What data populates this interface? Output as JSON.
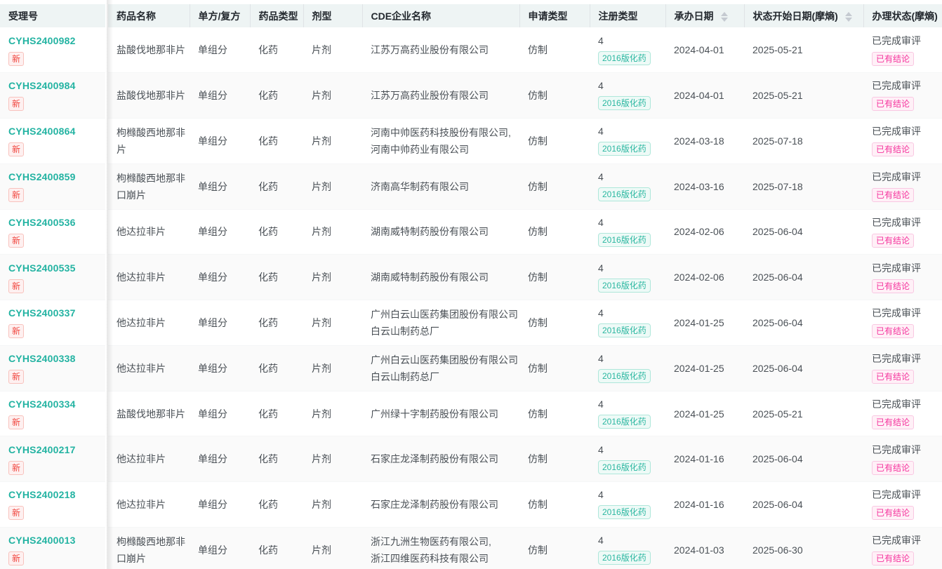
{
  "colors": {
    "accent_teal": "#23b3a2",
    "badge_red": "#f0443d",
    "badge_pink": "#f5339d",
    "header_bg": "#eef4f4",
    "zebra_bg": "#fafafa"
  },
  "table": {
    "new_badge": "新",
    "columns": [
      {
        "key": "acceptance_no",
        "label": "受理号",
        "sortable": false
      },
      {
        "key": "drug_name",
        "label": "药品名称",
        "sortable": false
      },
      {
        "key": "single_compound",
        "label": "单方/复方",
        "sortable": false
      },
      {
        "key": "drug_type",
        "label": "药品类型",
        "sortable": false
      },
      {
        "key": "dosage_form",
        "label": "剂型",
        "sortable": false
      },
      {
        "key": "cde_company",
        "label": "CDE企业名称",
        "sortable": false
      },
      {
        "key": "application_type",
        "label": "申请类型",
        "sortable": false
      },
      {
        "key": "registration_type",
        "label": "注册类型",
        "sortable": false
      },
      {
        "key": "acceptance_date",
        "label": "承办日期",
        "sortable": true
      },
      {
        "key": "status_start_date",
        "label": "状态开始日期(摩熵)",
        "sortable": true
      },
      {
        "key": "status",
        "label": "办理状态(摩熵)",
        "sortable": false
      }
    ],
    "rows": [
      {
        "acceptance_no": "CYHS2400982",
        "drug_name": "盐酸伐地那非片",
        "single_compound": "单组分",
        "drug_type": "化药",
        "dosage_form": "片剂",
        "cde_company": [
          "江苏万高药业股份有限公司"
        ],
        "application_type": "仿制",
        "registration_number": "4",
        "registration_tag": "2016版化药",
        "acceptance_date": "2024-04-01",
        "status_start_date": "2025-05-21",
        "status_text": "已完成审评",
        "status_tag": "已有结论"
      },
      {
        "acceptance_no": "CYHS2400984",
        "drug_name": "盐酸伐地那非片",
        "single_compound": "单组分",
        "drug_type": "化药",
        "dosage_form": "片剂",
        "cde_company": [
          "江苏万高药业股份有限公司"
        ],
        "application_type": "仿制",
        "registration_number": "4",
        "registration_tag": "2016版化药",
        "acceptance_date": "2024-04-01",
        "status_start_date": "2025-05-21",
        "status_text": "已完成审评",
        "status_tag": "已有结论"
      },
      {
        "acceptance_no": "CYHS2400864",
        "drug_name": "枸橼酸西地那非片",
        "single_compound": "单组分",
        "drug_type": "化药",
        "dosage_form": "片剂",
        "cde_company": [
          "河南中帅医药科技股份有限公司,",
          "河南中帅药业有限公司"
        ],
        "application_type": "仿制",
        "registration_number": "4",
        "registration_tag": "2016版化药",
        "acceptance_date": "2024-03-18",
        "status_start_date": "2025-07-18",
        "status_text": "已完成审评",
        "status_tag": "已有结论"
      },
      {
        "acceptance_no": "CYHS2400859",
        "drug_name": "枸橼酸西地那非口崩片",
        "single_compound": "单组分",
        "drug_type": "化药",
        "dosage_form": "片剂",
        "cde_company": [
          "济南高华制药有限公司"
        ],
        "application_type": "仿制",
        "registration_number": "4",
        "registration_tag": "2016版化药",
        "acceptance_date": "2024-03-16",
        "status_start_date": "2025-07-18",
        "status_text": "已完成审评",
        "status_tag": "已有结论"
      },
      {
        "acceptance_no": "CYHS2400536",
        "drug_name": "他达拉非片",
        "single_compound": "单组分",
        "drug_type": "化药",
        "dosage_form": "片剂",
        "cde_company": [
          "湖南威特制药股份有限公司"
        ],
        "application_type": "仿制",
        "registration_number": "4",
        "registration_tag": "2016版化药",
        "acceptance_date": "2024-02-06",
        "status_start_date": "2025-06-04",
        "status_text": "已完成审评",
        "status_tag": "已有结论"
      },
      {
        "acceptance_no": "CYHS2400535",
        "drug_name": "他达拉非片",
        "single_compound": "单组分",
        "drug_type": "化药",
        "dosage_form": "片剂",
        "cde_company": [
          "湖南威特制药股份有限公司"
        ],
        "application_type": "仿制",
        "registration_number": "4",
        "registration_tag": "2016版化药",
        "acceptance_date": "2024-02-06",
        "status_start_date": "2025-06-04",
        "status_text": "已完成审评",
        "status_tag": "已有结论"
      },
      {
        "acceptance_no": "CYHS2400337",
        "drug_name": "他达拉非片",
        "single_compound": "单组分",
        "drug_type": "化药",
        "dosage_form": "片剂",
        "cde_company": [
          "广州白云山医药集团股份有限公司",
          "白云山制药总厂"
        ],
        "application_type": "仿制",
        "registration_number": "4",
        "registration_tag": "2016版化药",
        "acceptance_date": "2024-01-25",
        "status_start_date": "2025-06-04",
        "status_text": "已完成审评",
        "status_tag": "已有结论"
      },
      {
        "acceptance_no": "CYHS2400338",
        "drug_name": "他达拉非片",
        "single_compound": "单组分",
        "drug_type": "化药",
        "dosage_form": "片剂",
        "cde_company": [
          "广州白云山医药集团股份有限公司",
          "白云山制药总厂"
        ],
        "application_type": "仿制",
        "registration_number": "4",
        "registration_tag": "2016版化药",
        "acceptance_date": "2024-01-25",
        "status_start_date": "2025-06-04",
        "status_text": "已完成审评",
        "status_tag": "已有结论"
      },
      {
        "acceptance_no": "CYHS2400334",
        "drug_name": "盐酸伐地那非片",
        "single_compound": "单组分",
        "drug_type": "化药",
        "dosage_form": "片剂",
        "cde_company": [
          "广州绿十字制药股份有限公司"
        ],
        "application_type": "仿制",
        "registration_number": "4",
        "registration_tag": "2016版化药",
        "acceptance_date": "2024-01-25",
        "status_start_date": "2025-05-21",
        "status_text": "已完成审评",
        "status_tag": "已有结论"
      },
      {
        "acceptance_no": "CYHS2400217",
        "drug_name": "他达拉非片",
        "single_compound": "单组分",
        "drug_type": "化药",
        "dosage_form": "片剂",
        "cde_company": [
          "石家庄龙泽制药股份有限公司"
        ],
        "application_type": "仿制",
        "registration_number": "4",
        "registration_tag": "2016版化药",
        "acceptance_date": "2024-01-16",
        "status_start_date": "2025-06-04",
        "status_text": "已完成审评",
        "status_tag": "已有结论"
      },
      {
        "acceptance_no": "CYHS2400218",
        "drug_name": "他达拉非片",
        "single_compound": "单组分",
        "drug_type": "化药",
        "dosage_form": "片剂",
        "cde_company": [
          "石家庄龙泽制药股份有限公司"
        ],
        "application_type": "仿制",
        "registration_number": "4",
        "registration_tag": "2016版化药",
        "acceptance_date": "2024-01-16",
        "status_start_date": "2025-06-04",
        "status_text": "已完成审评",
        "status_tag": "已有结论"
      },
      {
        "acceptance_no": "CYHS2400013",
        "drug_name": "枸橼酸西地那非口崩片",
        "single_compound": "单组分",
        "drug_type": "化药",
        "dosage_form": "片剂",
        "cde_company": [
          "浙江九洲生物医药有限公司,",
          "浙江四维医药科技有限公司"
        ],
        "application_type": "仿制",
        "registration_number": "4",
        "registration_tag": "2016版化药",
        "acceptance_date": "2024-01-03",
        "status_start_date": "2025-06-30",
        "status_text": "已完成审评",
        "status_tag": "已有结论"
      }
    ]
  }
}
